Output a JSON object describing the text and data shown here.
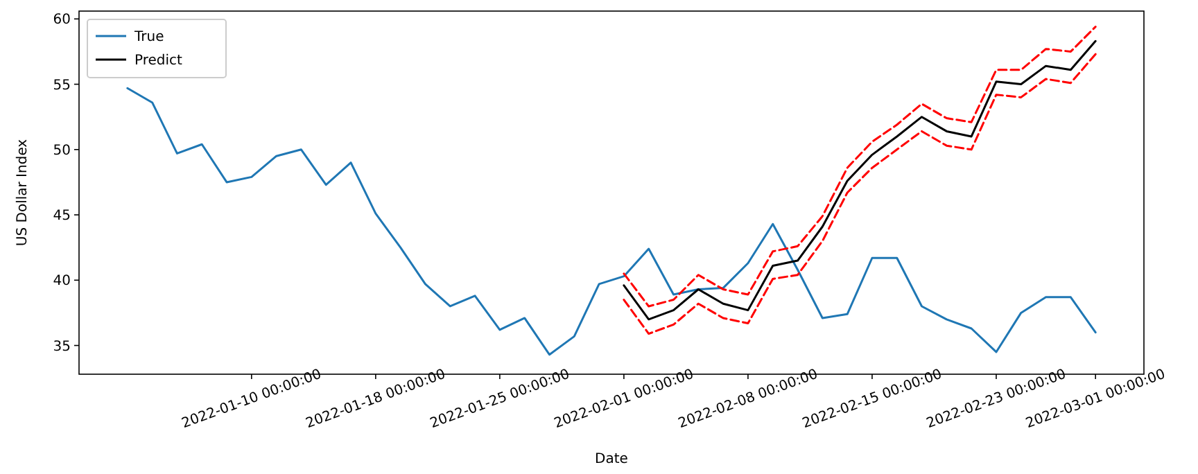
{
  "chart_data": {
    "type": "line",
    "xlabel": "Date",
    "ylabel": "US Dollar Index",
    "categories": [
      null,
      null,
      null,
      null,
      null,
      "2022-01-10 00:00:00",
      null,
      null,
      null,
      null,
      "2022-01-18 00:00:00",
      null,
      null,
      null,
      null,
      "2022-01-25 00:00:00",
      null,
      null,
      null,
      null,
      "2022-02-01 00:00:00",
      null,
      null,
      null,
      null,
      "2022-02-08 00:00:00",
      null,
      null,
      null,
      null,
      "2022-02-15 00:00:00",
      null,
      null,
      null,
      null,
      "2022-02-23 00:00:00",
      null,
      null,
      null,
      "2022-03-01 00:00:00"
    ],
    "series": [
      {
        "name": "True",
        "color": "#1f77b4",
        "values": [
          54.7,
          53.6,
          49.7,
          50.4,
          47.5,
          47.9,
          49.5,
          50.0,
          47.3,
          49.0,
          45.1,
          42.5,
          39.7,
          38.0,
          38.8,
          36.2,
          37.1,
          34.3,
          35.7,
          39.7,
          40.3,
          42.4,
          38.9,
          39.3,
          39.4,
          41.3,
          44.3,
          40.8,
          37.1,
          37.4,
          41.7,
          41.7,
          38.0,
          37.0,
          36.3,
          34.5,
          37.5,
          38.7,
          38.7,
          36.0
        ]
      },
      {
        "name": "Predict",
        "color": "#000000",
        "values": [
          null,
          null,
          null,
          null,
          null,
          null,
          null,
          null,
          null,
          null,
          null,
          null,
          null,
          null,
          null,
          null,
          null,
          null,
          null,
          null,
          39.6,
          37.0,
          37.7,
          39.3,
          38.2,
          37.7,
          41.1,
          41.5,
          44.1,
          47.6,
          49.6,
          51.0,
          52.5,
          51.4,
          51.0,
          55.2,
          55.0,
          56.4,
          56.1,
          58.3
        ]
      },
      {
        "color": "#ff0000",
        "line_style": "dashed",
        "values": [
          null,
          null,
          null,
          null,
          null,
          null,
          null,
          null,
          null,
          null,
          null,
          null,
          null,
          null,
          null,
          null,
          null,
          null,
          null,
          null,
          40.5,
          38.0,
          38.5,
          40.4,
          39.3,
          38.9,
          42.2,
          42.6,
          44.9,
          48.6,
          50.6,
          51.9,
          53.5,
          52.4,
          52.1,
          56.1,
          56.1,
          57.7,
          57.5,
          59.4
        ]
      },
      {
        "color": "#ff0000",
        "line_style": "dashed",
        "values": [
          null,
          null,
          null,
          null,
          null,
          null,
          null,
          null,
          null,
          null,
          null,
          null,
          null,
          null,
          null,
          null,
          null,
          null,
          null,
          null,
          38.5,
          35.9,
          36.6,
          38.2,
          37.1,
          36.7,
          40.1,
          40.4,
          43.0,
          46.7,
          48.6,
          50.0,
          51.4,
          50.3,
          50.0,
          54.2,
          54.0,
          55.4,
          55.1,
          57.3
        ]
      }
    ],
    "ylim": [
      32.8,
      60.6
    ],
    "yticks": [
      35,
      40,
      45,
      50,
      55,
      60
    ],
    "grid": false,
    "legend": "top left"
  }
}
